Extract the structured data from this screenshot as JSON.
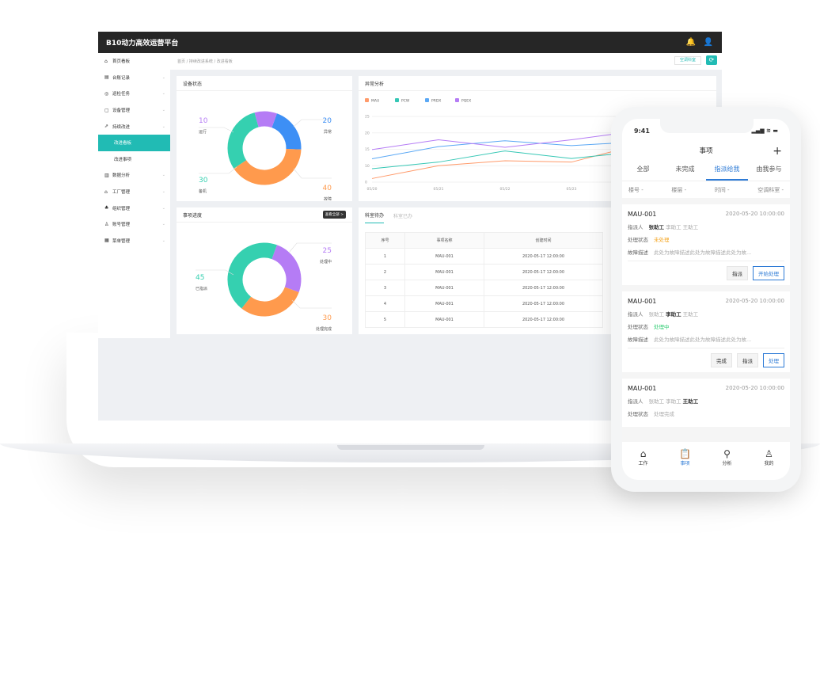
{
  "app": {
    "title": "B10动力高效运营平台",
    "icons": [
      "bell-icon",
      "user-icon"
    ]
  },
  "sidebar": {
    "items": [
      {
        "label": "首页看板",
        "icon": "home-icon"
      },
      {
        "label": "台账记录",
        "icon": "ledger-icon"
      },
      {
        "label": "巡检任务",
        "icon": "inspect-icon"
      },
      {
        "label": "设备管理",
        "icon": "device-icon"
      },
      {
        "label": "持续改进",
        "icon": "improve-icon"
      },
      {
        "label": "改进看板",
        "active": true
      },
      {
        "label": "改进事项"
      },
      {
        "label": "数据分析",
        "icon": "chart-icon"
      },
      {
        "label": "工厂管理",
        "icon": "factory-icon"
      },
      {
        "label": "组织管理",
        "icon": "org-icon"
      },
      {
        "label": "账号管理",
        "icon": "account-icon"
      },
      {
        "label": "菜单管理",
        "icon": "menu-icon"
      }
    ]
  },
  "breadcrumb": "首页 / 持续改进系统 / 改进看板",
  "dept_button": "空调科室",
  "device_status": {
    "title": "设备状态",
    "slices": [
      {
        "value": "20",
        "label": "异常",
        "color": "#3d8ff5"
      },
      {
        "value": "40",
        "label": "故障",
        "color": "#ff9a4d"
      },
      {
        "value": "30",
        "label": "备机",
        "color": "#35d0b0"
      },
      {
        "value": "10",
        "label": "运行",
        "color": "#b57cf5"
      }
    ]
  },
  "progress": {
    "title": "事项进度",
    "view_all": "查看全部 >",
    "slices": [
      {
        "value": "25",
        "label": "处理中",
        "color": "#b57cf5"
      },
      {
        "value": "30",
        "label": "处理完成",
        "color": "#ff9a4d"
      },
      {
        "value": "45",
        "label": "已指派",
        "color": "#35d0b0"
      }
    ]
  },
  "chart_data": {
    "type": "line",
    "title": "异常分析",
    "categories": [
      "05/20",
      "05/21",
      "05/22",
      "05/23",
      ""
    ],
    "ylim": [
      5,
      25
    ],
    "yticks": [
      "0",
      "10",
      "15",
      "20",
      "25"
    ],
    "grid": true,
    "legend": "top-left",
    "series": [
      {
        "name": "MAU",
        "color": "#ff9a6a",
        "values": [
          6.1,
          10,
          11.5,
          11.1,
          16.3
        ]
      },
      {
        "name": "PCW",
        "color": "#35c7b5",
        "values": [
          9.1,
          11.1,
          14.5,
          12.2,
          14.3
        ]
      },
      {
        "name": "PRDX",
        "color": "#5aa8f5",
        "values": [
          12.1,
          15.8,
          17.6,
          16.1,
          17.3
        ]
      },
      {
        "name": "PQEX",
        "color": "#b57cf5",
        "values": [
          14.9,
          17.9,
          15.6,
          17.9,
          20.6
        ]
      }
    ]
  },
  "table": {
    "tabs": [
      "科室待办",
      "科室已办"
    ],
    "headers": [
      "序号",
      "事项名称",
      "创建时间"
    ],
    "rows": [
      [
        "1",
        "MAU-001",
        "2020-05-17 12:00:00"
      ],
      [
        "2",
        "MAU-001",
        "2020-05-17 12:00:00"
      ],
      [
        "3",
        "MAU-001",
        "2020-05-17 12:00:00"
      ],
      [
        "4",
        "MAU-001",
        "2020-05-17 12:00:00"
      ],
      [
        "5",
        "MAU-001",
        "2020-05-17 12:00:00"
      ]
    ]
  },
  "phone": {
    "time": "9:41",
    "title": "事项",
    "tabs": [
      "全部",
      "未完成",
      "指派给我",
      "由我参与"
    ],
    "filters": [
      "楼号 -",
      "楼层 -",
      "时间 -",
      "空调科室 -"
    ],
    "labels": {
      "assign": "指派人",
      "status": "处理状态",
      "desc": "故障描述"
    },
    "workers": [
      "张助工",
      "李助工",
      "王助工"
    ],
    "cards": [
      {
        "id": "MAU-001",
        "time": "2020-05-20 10:00:00",
        "status": "未处理",
        "status_color": "#f5a623",
        "desc": "此处为故障描述此处为故障描述此处为故...",
        "actions": [
          "指派",
          "开始处理"
        ]
      },
      {
        "id": "MAU-001",
        "time": "2020-05-20 10:00:00",
        "status": "处理中",
        "status_color": "#2ecc71",
        "desc": "此处为故障描述此处为故障描述此处为故...",
        "actions": [
          "完成",
          "指派",
          "处理"
        ]
      },
      {
        "id": "MAU-001",
        "time": "2020-05-20 10:00:00",
        "status": "处理完成",
        "status_color": "#aaaaaa"
      }
    ],
    "nav": [
      {
        "label": "工作",
        "icon": "home-icon"
      },
      {
        "label": "事项",
        "icon": "clipboard-icon",
        "active": true
      },
      {
        "label": "分析",
        "icon": "search-icon"
      },
      {
        "label": "我的",
        "icon": "user-icon"
      }
    ]
  }
}
